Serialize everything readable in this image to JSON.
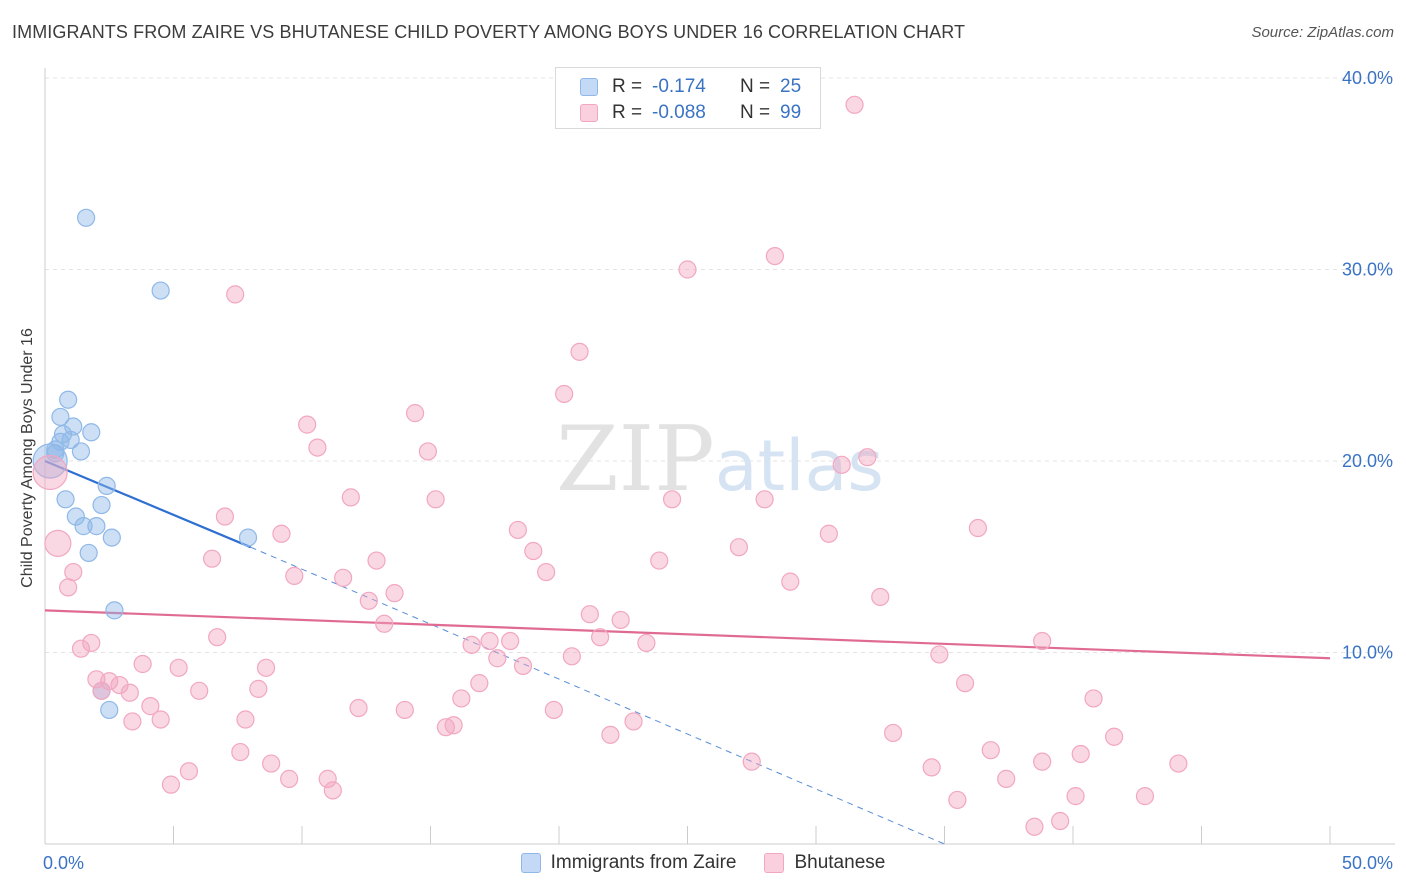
{
  "chart_data": {
    "type": "scatter",
    "title": "IMMIGRANTS FROM ZAIRE VS BHUTANESE CHILD POVERTY AMONG BOYS UNDER 16 CORRELATION CHART",
    "source": "Source: ZipAtlas.com",
    "watermark": "ZIPatlas",
    "xlabel": "",
    "ylabel": "Child Poverty Among Boys Under 16",
    "xlim": [
      0,
      50
    ],
    "ylim": [
      0,
      40
    ],
    "x_tick_labels": [
      "0.0%",
      "50.0%"
    ],
    "y_tick_labels": [
      "10.0%",
      "20.0%",
      "30.0%",
      "40.0%"
    ],
    "y_ticks": [
      10,
      20,
      30,
      40
    ],
    "legend": {
      "r_label": "R =",
      "n_label": "N =",
      "entries": [
        {
          "r": "-0.174",
          "n": "25"
        },
        {
          "r": "-0.088",
          "n": "99"
        }
      ]
    },
    "series": [
      {
        "name": "Immigrants from Zaire",
        "color": "#8fb8e8",
        "line_color": "#2e6fd1",
        "trend": {
          "x": [
            0,
            8
          ],
          "y": [
            20.0,
            15.5
          ],
          "dashed_to": [
            35,
            0
          ]
        },
        "points": [
          [
            0.2,
            20.0
          ],
          [
            0.4,
            20.6
          ],
          [
            0.4,
            20.4
          ],
          [
            0.6,
            21.0
          ],
          [
            0.6,
            22.3
          ],
          [
            0.7,
            21.4
          ],
          [
            0.8,
            18.0
          ],
          [
            0.9,
            23.2
          ],
          [
            1.0,
            21.1
          ],
          [
            1.1,
            21.8
          ],
          [
            1.2,
            17.1
          ],
          [
            1.4,
            20.5
          ],
          [
            1.5,
            16.6
          ],
          [
            1.6,
            32.7
          ],
          [
            1.7,
            15.2
          ],
          [
            1.8,
            21.5
          ],
          [
            2.0,
            16.6
          ],
          [
            2.2,
            17.7
          ],
          [
            2.4,
            18.7
          ],
          [
            2.6,
            16.0
          ],
          [
            2.7,
            12.2
          ],
          [
            2.2,
            8.0
          ],
          [
            2.5,
            7.0
          ],
          [
            4.5,
            28.9
          ],
          [
            7.9,
            16.0
          ]
        ]
      },
      {
        "name": "Bhutanese",
        "color": "#f2a7c0",
        "line_color": "#e06b92",
        "trend": {
          "x": [
            0,
            50
          ],
          "y": [
            12.2,
            9.7
          ]
        },
        "points": [
          [
            0.2,
            19.4
          ],
          [
            0.5,
            15.7
          ],
          [
            0.9,
            13.4
          ],
          [
            1.1,
            14.2
          ],
          [
            1.4,
            10.2
          ],
          [
            1.8,
            10.5
          ],
          [
            2.0,
            8.6
          ],
          [
            2.2,
            8.0
          ],
          [
            2.5,
            8.5
          ],
          [
            2.9,
            8.3
          ],
          [
            3.3,
            7.9
          ],
          [
            3.4,
            6.4
          ],
          [
            3.8,
            9.4
          ],
          [
            4.1,
            7.2
          ],
          [
            4.5,
            6.5
          ],
          [
            4.9,
            3.1
          ],
          [
            5.2,
            9.2
          ],
          [
            5.6,
            3.8
          ],
          [
            6.0,
            8.0
          ],
          [
            6.5,
            14.9
          ],
          [
            6.7,
            10.8
          ],
          [
            7.0,
            17.1
          ],
          [
            7.4,
            28.7
          ],
          [
            7.6,
            4.8
          ],
          [
            7.8,
            6.5
          ],
          [
            8.3,
            8.1
          ],
          [
            8.6,
            9.2
          ],
          [
            8.8,
            4.2
          ],
          [
            9.2,
            16.2
          ],
          [
            9.5,
            3.4
          ],
          [
            9.7,
            14.0
          ],
          [
            10.2,
            21.9
          ],
          [
            10.6,
            20.7
          ],
          [
            11.0,
            3.4
          ],
          [
            11.2,
            2.8
          ],
          [
            11.6,
            13.9
          ],
          [
            11.9,
            18.1
          ],
          [
            12.2,
            7.1
          ],
          [
            12.6,
            12.7
          ],
          [
            12.9,
            14.8
          ],
          [
            13.2,
            11.5
          ],
          [
            13.6,
            13.1
          ],
          [
            14.0,
            7.0
          ],
          [
            14.4,
            22.5
          ],
          [
            14.9,
            20.5
          ],
          [
            15.2,
            18.0
          ],
          [
            15.6,
            6.1
          ],
          [
            15.9,
            6.2
          ],
          [
            16.2,
            7.6
          ],
          [
            16.6,
            10.4
          ],
          [
            16.9,
            8.4
          ],
          [
            17.3,
            10.6
          ],
          [
            17.6,
            9.7
          ],
          [
            18.1,
            10.6
          ],
          [
            18.4,
            16.4
          ],
          [
            18.6,
            9.3
          ],
          [
            19.0,
            15.3
          ],
          [
            19.5,
            14.2
          ],
          [
            19.8,
            7.0
          ],
          [
            20.2,
            23.5
          ],
          [
            20.5,
            9.8
          ],
          [
            20.8,
            25.7
          ],
          [
            21.2,
            12.0
          ],
          [
            21.6,
            10.8
          ],
          [
            22.0,
            5.7
          ],
          [
            22.4,
            11.7
          ],
          [
            22.9,
            6.4
          ],
          [
            23.4,
            10.5
          ],
          [
            23.9,
            14.8
          ],
          [
            24.4,
            18.0
          ],
          [
            25.0,
            30.0
          ],
          [
            27.0,
            15.5
          ],
          [
            27.5,
            4.3
          ],
          [
            28.0,
            18.0
          ],
          [
            28.4,
            30.7
          ],
          [
            29.0,
            13.7
          ],
          [
            30.5,
            16.2
          ],
          [
            31.0,
            19.8
          ],
          [
            31.5,
            38.6
          ],
          [
            32.0,
            20.2
          ],
          [
            32.5,
            12.9
          ],
          [
            33.0,
            5.8
          ],
          [
            34.5,
            4.0
          ],
          [
            34.8,
            9.9
          ],
          [
            35.5,
            2.3
          ],
          [
            35.8,
            8.4
          ],
          [
            36.3,
            16.5
          ],
          [
            36.8,
            4.9
          ],
          [
            37.4,
            3.4
          ],
          [
            38.5,
            0.9
          ],
          [
            38.8,
            10.6
          ],
          [
            38.8,
            4.3
          ],
          [
            39.5,
            1.2
          ],
          [
            40.1,
            2.5
          ],
          [
            40.3,
            4.7
          ],
          [
            40.8,
            7.6
          ],
          [
            41.6,
            5.6
          ],
          [
            42.8,
            2.5
          ],
          [
            44.1,
            4.2
          ]
        ]
      }
    ]
  },
  "bottom_legend": {
    "items": [
      "Immigrants from Zaire",
      "Bhutanese"
    ]
  }
}
